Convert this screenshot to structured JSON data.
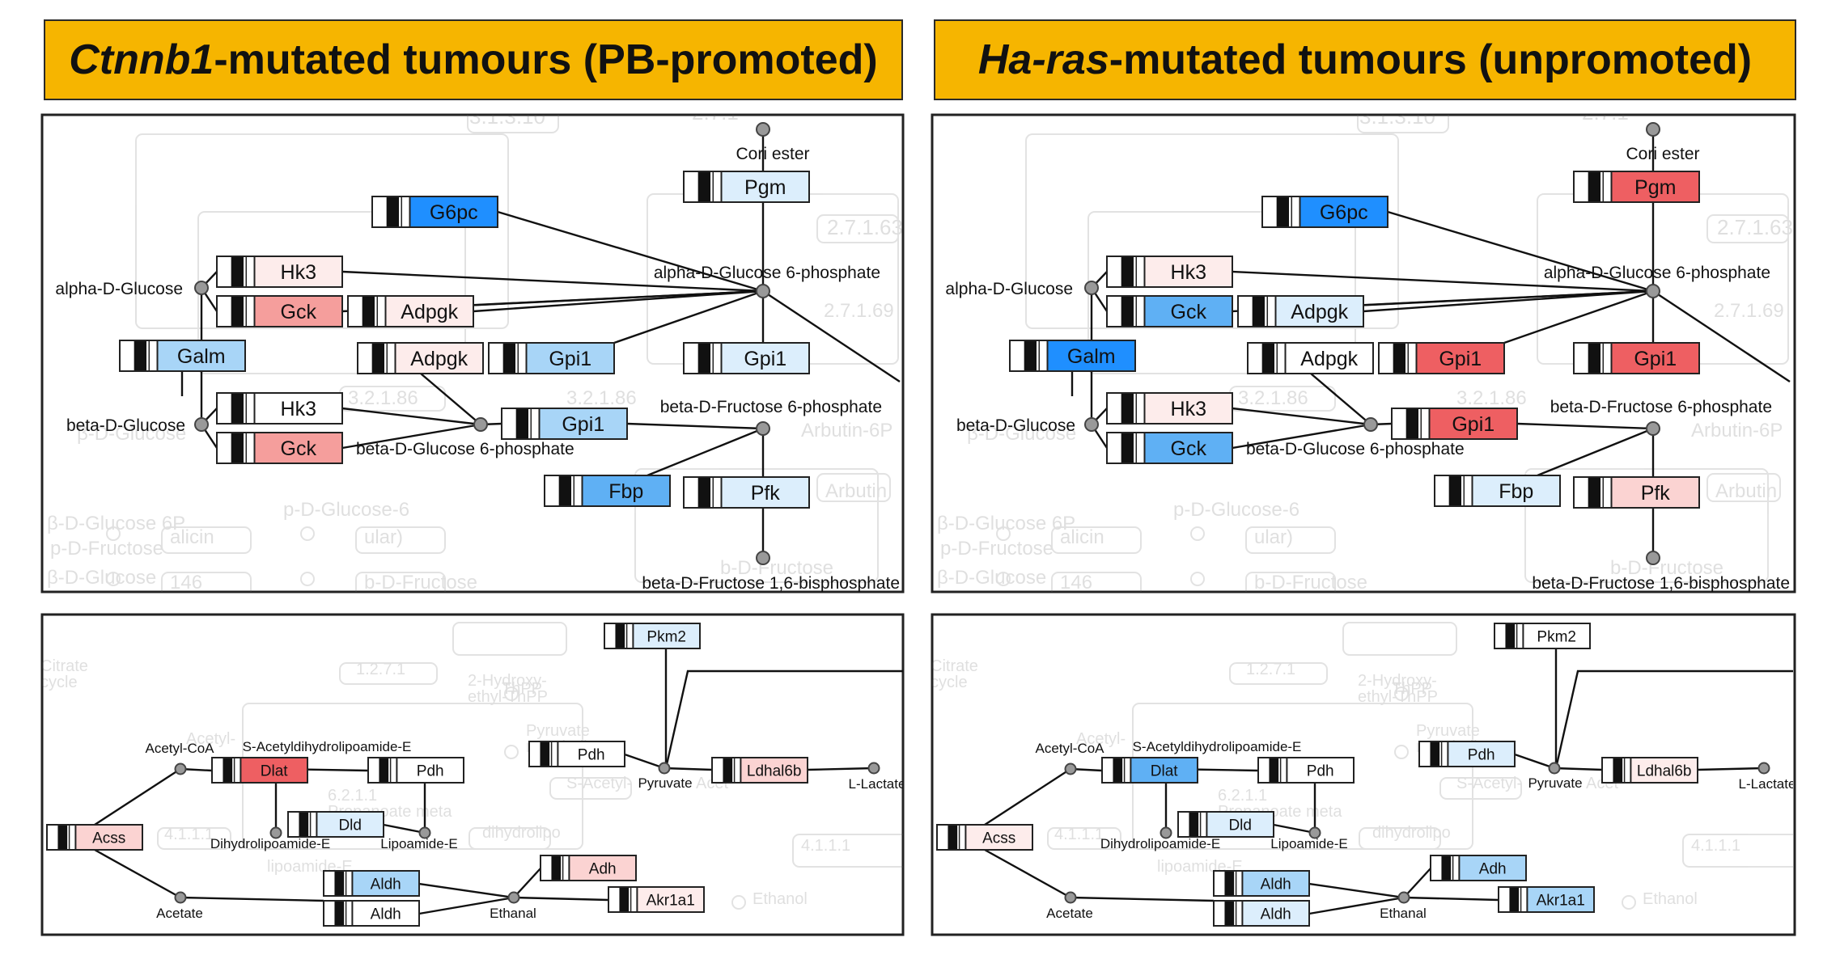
{
  "colors": {
    "banner": "#f6b500",
    "blue_strong": "#1f8fff",
    "blue_mid": "#5fb0f4",
    "blue_light": "#a8d5f7",
    "blue_pale": "#dceefc",
    "red_strong": "#ee5f62",
    "red_mid": "#f59e9c",
    "red_light": "#fbd3d2",
    "red_pale": "#fdeceb",
    "white": "#ffffff"
  },
  "header": {
    "left": {
      "italic": "Ctnnb1",
      "rest": "-mutated tumours (PB-promoted)"
    },
    "right": {
      "italic": "Ha-ras",
      "rest": "-mutated tumours (unpromoted)"
    }
  },
  "glycolysis": {
    "compounds": {
      "cori": "Cori ester",
      "a_glc": "alpha-D-Glucose",
      "a_g6p": "alpha-D-Glucose 6-phosphate",
      "b_glc": "beta-D-Glucose",
      "b_g6p": "beta-D-Glucose 6-phosphate",
      "f6p": "beta-D-Fructose 6-phosphate",
      "f16bp": "beta-D-Fructose 1,6-bisphosphate"
    },
    "background": [
      "3.1.3.10",
      "2.7.1",
      "2.7.1.63",
      "2.7.1.69",
      "3.2.1.86",
      "3.2.1.86",
      "Arbutin-6P",
      "Arbutin",
      "alicin",
      "ular)",
      "p-D-Glucose-6",
      "β-D-Glucose 6P",
      "p-D-Fructose",
      "146",
      "b-D-Fructose",
      "β-D-Glucose"
    ],
    "genes": {
      "pgm": "Pgm",
      "g6pc": "G6pc",
      "hk3a": "Hk3",
      "gck_a": "Gck",
      "adpgk_a": "Adpgk",
      "galm": "Galm",
      "adpgk_b": "Adpgk",
      "gpi1_a": "Gpi1",
      "gpi1_b": "Gpi1",
      "hk3b": "Hk3",
      "gck_b": "Gck",
      "gpi1_c": "Gpi1",
      "fbp": "Fbp",
      "pfk": "Pfk"
    }
  },
  "pyruvate": {
    "compounds": {
      "acetylcoa": "Acetyl-CoA",
      "sacetyl": "S-Acetyldihydrolipoamide-E",
      "dihydro": "Dihydrolipoamide-E",
      "lipoamide": "Lipoamide-E",
      "pyruvate": "Pyruvate",
      "llactate": "L-Lactate",
      "acetate": "Acetate",
      "ethanal": "Ethanal"
    },
    "background": [
      "Citrate",
      "cycle",
      "1.2.7.1",
      "ThPP",
      "2-Hydroxy-",
      "ethyl-ThPP",
      "Pyruvate",
      "metabolism",
      "S-Acetyl-",
      "dihydrolipo",
      "4.1.1.1",
      "4.1.1.1",
      "6.2.1.1",
      "Propanoate meta",
      "lipoamide-E",
      "Ethanol",
      "Acetyl-",
      "Acet"
    ],
    "genes": {
      "pkm2": "Pkm2",
      "pdh_a": "Pdh",
      "dlat": "Dlat",
      "pdh_b": "Pdh",
      "ldhal6b": "Ldhal6b",
      "dld": "Dld",
      "acss": "Acss",
      "adh": "Adh",
      "aldh_a": "Aldh",
      "aldh_b": "Aldh",
      "akr1a1": "Akr1a1"
    }
  },
  "panels": [
    {
      "id": "ctnnb1",
      "glycolysis": {
        "pgm": "blue_pale",
        "g6pc": "blue_strong",
        "hk3a": "red_pale",
        "gck_a": "red_mid",
        "adpgk_a": "red_pale",
        "galm": "blue_light",
        "adpgk_b": "red_pale",
        "gpi1_a": "blue_light",
        "gpi1_b": "blue_pale",
        "hk3b": "white",
        "gck_b": "red_mid",
        "gpi1_c": "blue_light",
        "fbp": "blue_mid",
        "pfk": "blue_pale"
      },
      "pyruvate": {
        "pkm2": "blue_pale",
        "pdh_a": "white",
        "dlat": "red_strong",
        "pdh_b": "white",
        "ldhal6b": "red_light",
        "dld": "blue_pale",
        "acss": "red_light",
        "adh": "red_light",
        "aldh_a": "blue_light",
        "aldh_b": "white",
        "akr1a1": "red_pale"
      }
    },
    {
      "id": "haras",
      "glycolysis": {
        "pgm": "red_strong",
        "g6pc": "blue_strong",
        "hk3a": "red_pale",
        "gck_a": "blue_mid",
        "adpgk_a": "blue_pale",
        "galm": "blue_strong",
        "adpgk_b": "white",
        "gpi1_a": "red_strong",
        "gpi1_b": "red_strong",
        "hk3b": "red_pale",
        "gck_b": "blue_mid",
        "gpi1_c": "red_strong",
        "fbp": "blue_pale",
        "pfk": "red_light"
      },
      "pyruvate": {
        "pkm2": "white",
        "pdh_a": "blue_pale",
        "dlat": "blue_mid",
        "pdh_b": "white",
        "ldhal6b": "red_pale",
        "dld": "blue_pale",
        "acss": "red_pale",
        "adh": "blue_light",
        "aldh_a": "blue_light",
        "aldh_b": "blue_pale",
        "akr1a1": "blue_light"
      }
    }
  ]
}
